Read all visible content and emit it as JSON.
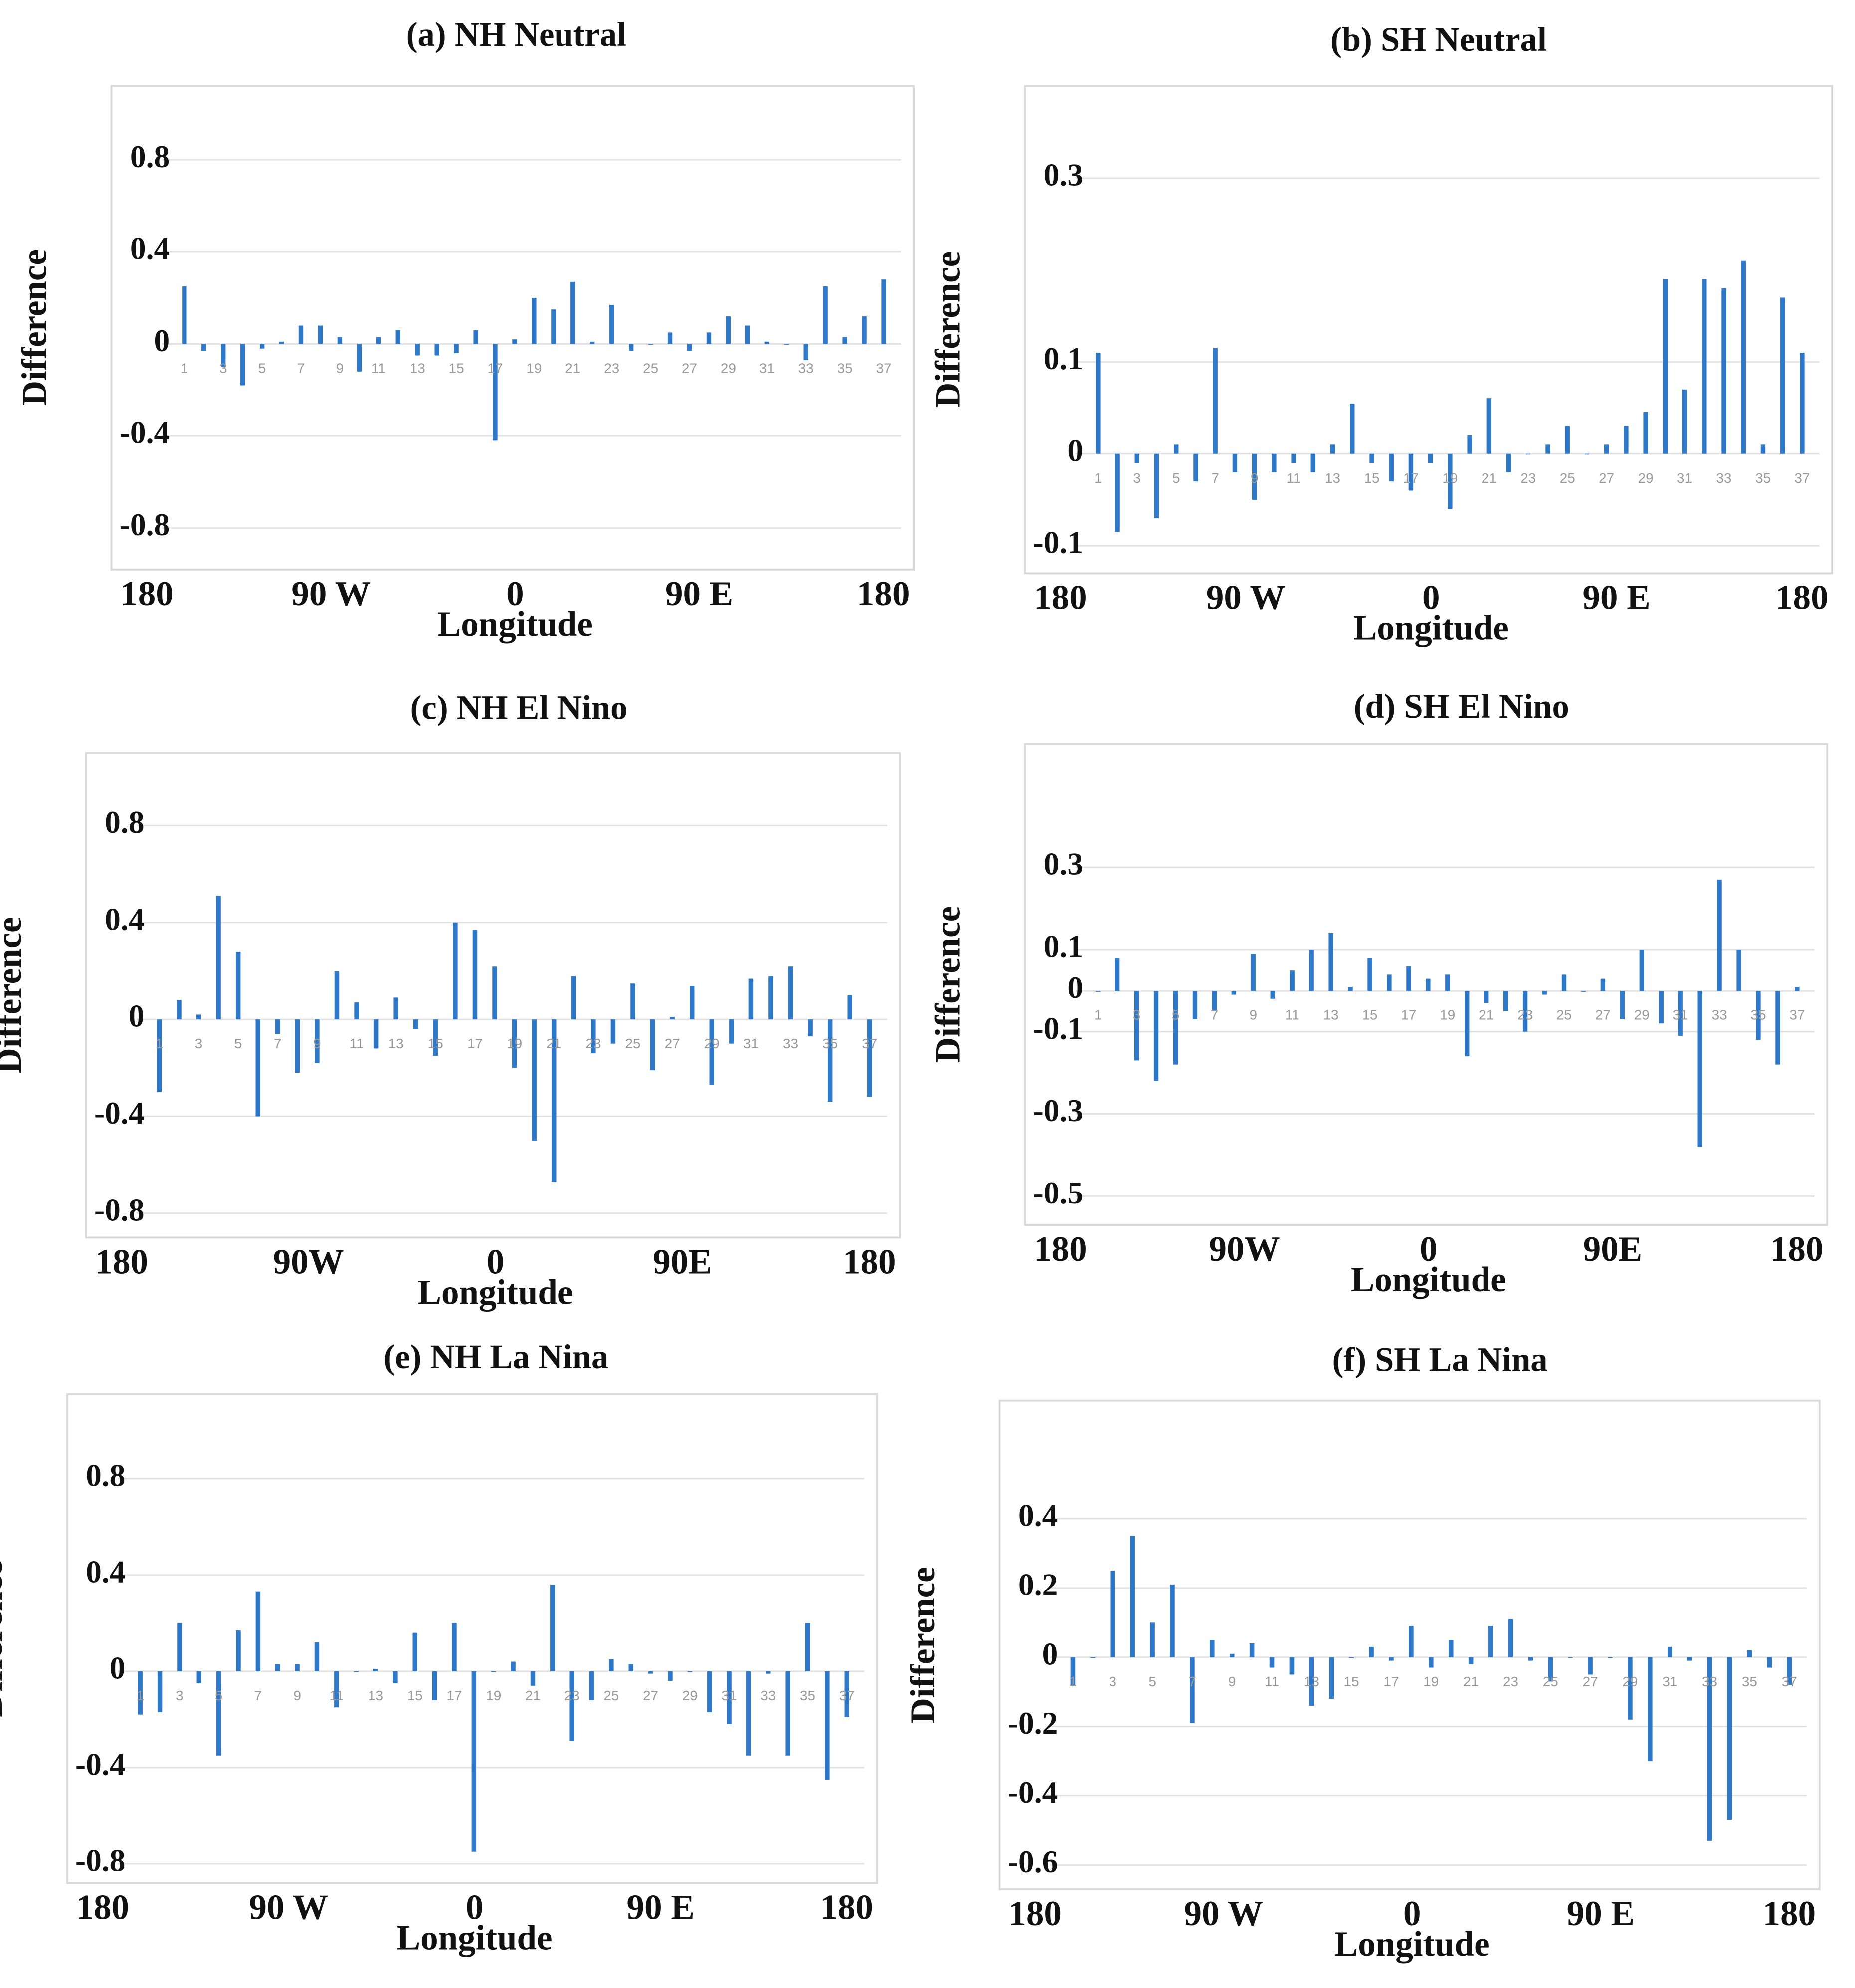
{
  "chart_data": [
    {
      "type": "bar",
      "title": "(a) NH Neutral",
      "xlabel": "Longitude",
      "ylabel": "Difference",
      "longitude_labels": [
        "180",
        "90 W",
        "0",
        "90 E",
        "180"
      ],
      "categories": [
        "1",
        null,
        "3",
        null,
        "5",
        null,
        "7",
        null,
        "9",
        null,
        "11",
        null,
        "13",
        null,
        "15",
        null,
        "17",
        null,
        "19",
        null,
        "21",
        null,
        "23",
        null,
        "25",
        null,
        "27",
        null,
        "29",
        null,
        "31",
        null,
        "33",
        null,
        "35",
        null,
        "37"
      ],
      "values": [
        0.25,
        -0.03,
        -0.1,
        -0.18,
        -0.02,
        0.01,
        0.08,
        0.08,
        0.03,
        -0.12,
        0.03,
        0.06,
        -0.05,
        -0.05,
        -0.04,
        0.06,
        -0.42,
        0.02,
        0.2,
        0.15,
        0.27,
        0.01,
        0.17,
        -0.03,
        0,
        0.05,
        -0.03,
        0.05,
        0.12,
        0.08,
        0.01,
        0,
        -0.07,
        0.25,
        0.03,
        0.12,
        0.28
      ],
      "color": "#2f78c8",
      "ylim": [
        -0.98,
        1.12
      ],
      "yticks": [
        0.8,
        0.4,
        0,
        -0.4,
        -0.8
      ],
      "grid": true
    },
    {
      "type": "bar",
      "title": "(b) SH Neutral",
      "xlabel": "Longitude",
      "ylabel": "Difference",
      "longitude_labels": [
        "180",
        "90 W",
        "0",
        "90 E",
        "180"
      ],
      "categories": [
        "1",
        null,
        "3",
        null,
        "5",
        null,
        "7",
        null,
        "9",
        null,
        "11",
        null,
        "13",
        null,
        "15",
        null,
        "17",
        null,
        "19",
        null,
        "21",
        null,
        "23",
        null,
        "25",
        null,
        "27",
        null,
        "29",
        null,
        "31",
        null,
        "33",
        null,
        "35",
        null,
        "37"
      ],
      "values": [
        0.11,
        -0.085,
        -0.01,
        -0.07,
        0.01,
        -0.03,
        0.115,
        -0.02,
        -0.05,
        -0.02,
        -0.01,
        -0.02,
        0.01,
        0.054,
        -0.01,
        -0.03,
        -0.04,
        -0.01,
        -0.06,
        0.02,
        0.06,
        -0.02,
        0,
        0.01,
        0.03,
        0,
        0.01,
        0.03,
        0.045,
        0.19,
        0.07,
        0.19,
        0.18,
        0.21,
        0.01,
        0.17,
        0.11
      ],
      "color": "#2f78c8",
      "ylim": [
        -0.13,
        0.4
      ],
      "yticks": [
        0.3,
        0.1,
        0,
        -0.1
      ],
      "grid": true
    },
    {
      "type": "bar",
      "title": "(c) NH El Nino",
      "xlabel": "Longitude",
      "ylabel": "Difference",
      "longitude_labels": [
        "180",
        "90W",
        "0",
        "90E",
        "180"
      ],
      "categories": [
        "1",
        null,
        "3",
        null,
        "5",
        null,
        "7",
        null,
        "9",
        null,
        "11",
        null,
        "13",
        null,
        "15",
        null,
        "17",
        null,
        "19",
        null,
        "21",
        null,
        "23",
        null,
        "25",
        null,
        "27",
        null,
        "29",
        null,
        "31",
        null,
        "33",
        null,
        "35",
        null,
        "37"
      ],
      "values": [
        -0.3,
        0.08,
        0.02,
        0.51,
        0.28,
        -0.4,
        -0.06,
        -0.22,
        -0.18,
        0.2,
        0.07,
        -0.12,
        0.09,
        -0.04,
        -0.15,
        0.4,
        0.37,
        0.22,
        -0.2,
        -0.5,
        -0.67,
        0.18,
        -0.14,
        -0.1,
        0.15,
        -0.21,
        0.01,
        0.14,
        -0.27,
        -0.1,
        0.17,
        0.18,
        0.22,
        -0.07,
        -0.34,
        0.1,
        -0.32
      ],
      "color": "#2f78c8",
      "ylim": [
        -0.9,
        1.1
      ],
      "yticks": [
        0.8,
        0.4,
        0,
        -0.4,
        -0.8
      ],
      "grid": true
    },
    {
      "type": "bar",
      "title": "(d) SH El Nino",
      "xlabel": "Longitude",
      "ylabel": "Difference",
      "longitude_labels": [
        "180",
        "90W",
        "0",
        "90E",
        "180"
      ],
      "categories": [
        "1",
        null,
        "3",
        null,
        "5",
        null,
        "7",
        null,
        "9",
        null,
        "11",
        null,
        "13",
        null,
        "15",
        null,
        "17",
        null,
        "19",
        null,
        "21",
        null,
        "23",
        null,
        "25",
        null,
        "27",
        null,
        "29",
        null,
        "31",
        null,
        "33",
        null,
        "35",
        null,
        "37"
      ],
      "values": [
        0,
        0.08,
        -0.17,
        -0.22,
        -0.18,
        -0.07,
        -0.05,
        -0.01,
        0.09,
        -0.02,
        0.05,
        0.1,
        0.14,
        0.01,
        0.08,
        0.04,
        0.06,
        0.03,
        0.04,
        -0.16,
        -0.03,
        -0.05,
        -0.1,
        -0.01,
        0.04,
        0,
        0.03,
        -0.07,
        0.1,
        -0.08,
        -0.11,
        -0.38,
        0.27,
        0.1,
        -0.12,
        -0.18,
        0.01
      ],
      "color": "#2f78c8",
      "ylim": [
        -0.57,
        0.6
      ],
      "yticks": [
        0.3,
        0.1,
        0,
        -0.1,
        -0.3,
        -0.5
      ],
      "grid": true
    },
    {
      "type": "bar",
      "title": "(e) NH La Nina",
      "xlabel": "Longitude",
      "ylabel": "Difference",
      "longitude_labels": [
        "180",
        "90 W",
        "0",
        "90 E",
        "180"
      ],
      "categories": [
        "1",
        null,
        "3",
        null,
        "5",
        null,
        "7",
        null,
        "9",
        null,
        "11",
        null,
        "13",
        null,
        "15",
        null,
        "17",
        null,
        "19",
        null,
        "21",
        null,
        "23",
        null,
        "25",
        null,
        "27",
        null,
        "29",
        null,
        "31",
        null,
        "33",
        null,
        "35",
        null,
        "37"
      ],
      "values": [
        -0.18,
        -0.17,
        0.2,
        -0.05,
        -0.35,
        0.17,
        0.33,
        0.03,
        0.03,
        0.12,
        -0.15,
        0,
        0.01,
        -0.05,
        0.16,
        -0.12,
        0.2,
        -0.75,
        0,
        0.04,
        -0.06,
        0.36,
        -0.29,
        -0.12,
        0.05,
        0.03,
        -0.01,
        -0.04,
        0,
        -0.17,
        -0.22,
        -0.35,
        -0.01,
        -0.35,
        0.2,
        -0.45,
        -0.19
      ],
      "color": "#2f78c8",
      "ylim": [
        -0.88,
        1.15
      ],
      "yticks": [
        0.8,
        0.4,
        0,
        -0.4,
        -0.8
      ],
      "grid": true
    },
    {
      "type": "bar",
      "title": "(f) SH La Nina",
      "xlabel": "Longitude",
      "ylabel": "Difference",
      "longitude_labels": [
        "180",
        "90 W",
        "0",
        "90 E",
        "180"
      ],
      "categories": [
        "1",
        null,
        "3",
        null,
        "5",
        null,
        "7",
        null,
        "9",
        null,
        "11",
        null,
        "13",
        null,
        "15",
        null,
        "17",
        null,
        "19",
        null,
        "21",
        null,
        "23",
        null,
        "25",
        null,
        "27",
        null,
        "29",
        null,
        "31",
        null,
        "33",
        null,
        "35",
        null,
        "37"
      ],
      "values": [
        -0.08,
        0,
        0.25,
        0.35,
        0.1,
        0.21,
        -0.19,
        0.05,
        0.01,
        0.04,
        -0.03,
        -0.05,
        -0.14,
        -0.12,
        0,
        0.03,
        -0.01,
        0.09,
        -0.03,
        0.05,
        -0.02,
        0.09,
        0.11,
        -0.01,
        -0.07,
        0,
        -0.05,
        0,
        -0.18,
        -0.3,
        0.03,
        -0.01,
        -0.53,
        -0.47,
        0.02,
        -0.03,
        -0.08
      ],
      "color": "#2f78c8",
      "ylim": [
        -0.67,
        0.74
      ],
      "yticks": [
        0.4,
        0.2,
        0,
        -0.2,
        -0.4,
        -0.6
      ],
      "grid": true
    }
  ]
}
